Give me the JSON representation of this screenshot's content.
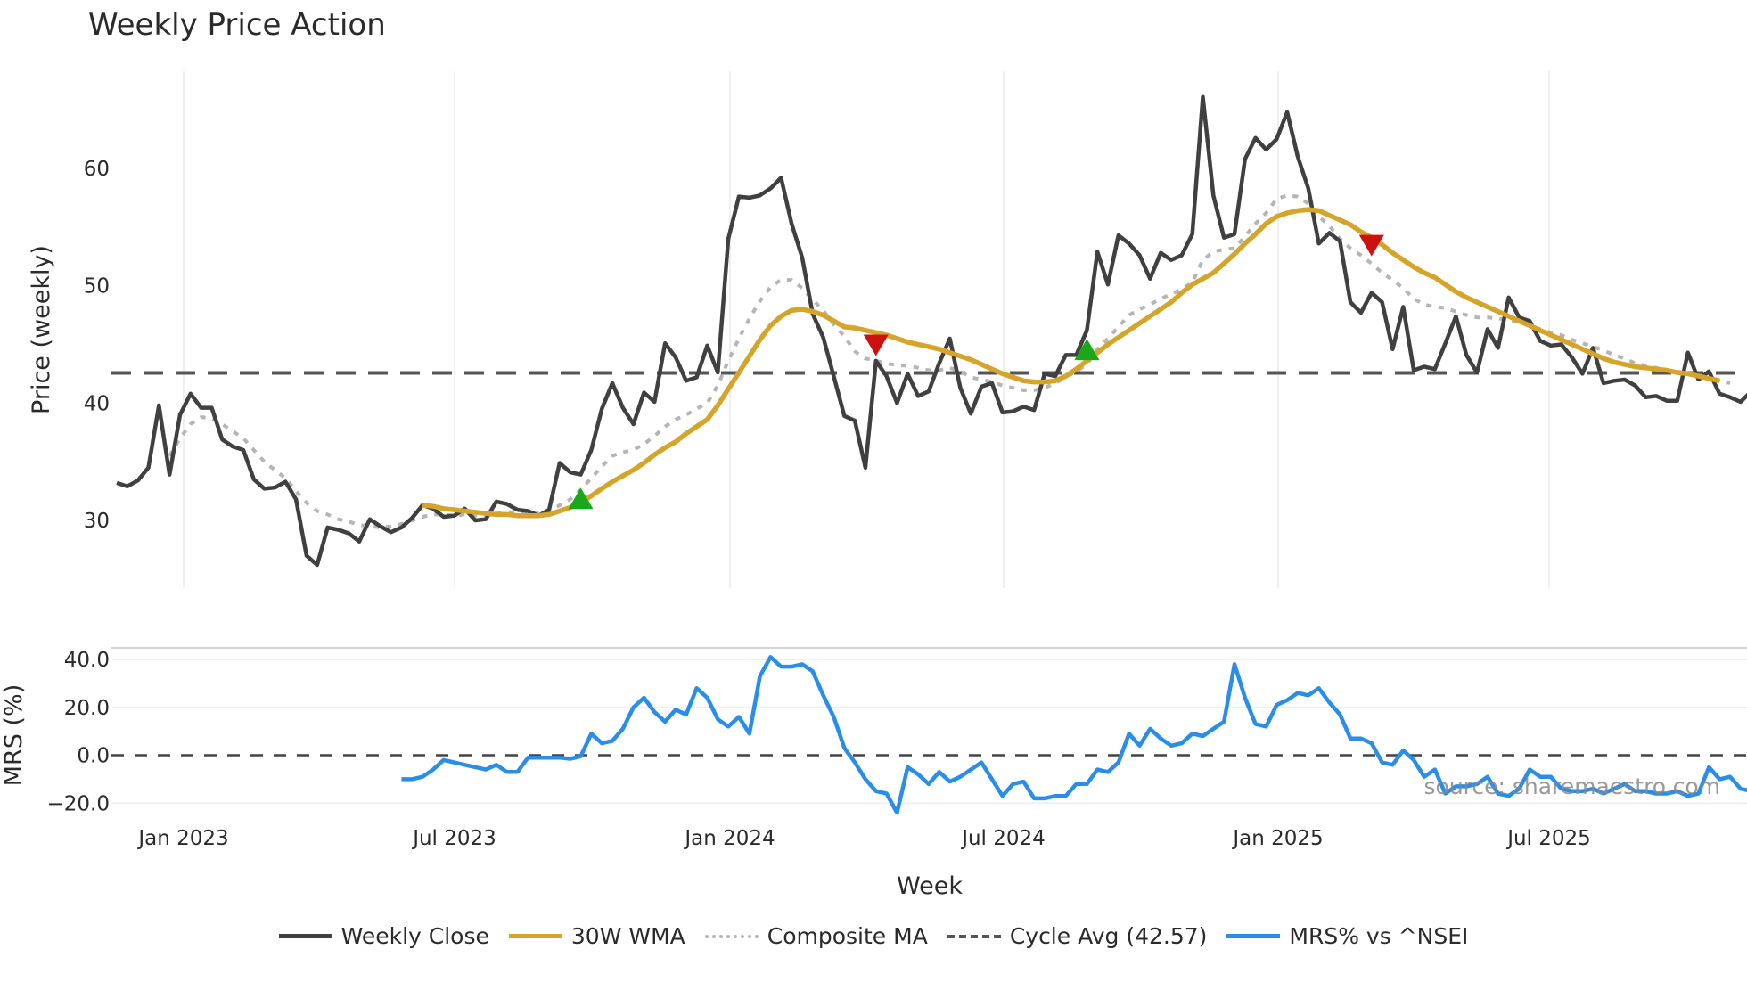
{
  "title": "Weekly Price Action",
  "watermark": "source: sharemaestro.com",
  "axes": {
    "price_ylabel": "Price (weekly)",
    "mrs_ylabel": "MRS (%)",
    "xlabel": "Week",
    "price_ticks": [
      "30",
      "40",
      "50",
      "60"
    ],
    "mrs_ticks": [
      "40.0",
      "20.0",
      "0.0",
      "−20.0"
    ],
    "x_ticks": [
      "Jan 2023",
      "Jul 2023",
      "Jan 2024",
      "Jul 2024",
      "Jan 2025",
      "Jul 2025"
    ]
  },
  "legend": [
    {
      "label": "Weekly Close",
      "color": "#404040",
      "style": "solid"
    },
    {
      "label": "30W WMA",
      "color": "#d4a52a",
      "style": "solid"
    },
    {
      "label": "Composite MA",
      "color": "#b5b5b5",
      "style": "dotted"
    },
    {
      "label": "Cycle Avg (42.57)",
      "color": "#555555",
      "style": "dashed"
    },
    {
      "label": "MRS% vs ^NSEI",
      "color": "#2a8ee8",
      "style": "solid"
    }
  ],
  "chart_data": {
    "type": "line",
    "title": "Weekly Price Action",
    "xlabel": "Week",
    "ylabel": "Price (weekly)",
    "ylim": [
      24,
      67
    ],
    "x_ticks": [
      "Jan 2023",
      "Jul 2023",
      "Jan 2024",
      "Jul 2024",
      "Jan 2025",
      "Jul 2025"
    ],
    "grid": true,
    "legend_position": "bottom",
    "cycle_avg": 42.57,
    "series": [
      {
        "name": "Weekly Close",
        "values": [
          33.2,
          32.9,
          33.4,
          34.5,
          39.8,
          33.9,
          39.0,
          40.8,
          39.6,
          39.6,
          36.9,
          36.3,
          36.0,
          33.5,
          32.7,
          32.8,
          33.3,
          31.8,
          27.0,
          26.2,
          29.4,
          29.2,
          28.9,
          28.2,
          30.1,
          29.5,
          29.0,
          29.4,
          30.2,
          31.3,
          31.0,
          30.3,
          30.4,
          31.0,
          30.0,
          30.1,
          31.6,
          31.4,
          30.9,
          30.8,
          30.4,
          30.9,
          34.9,
          34.1,
          33.9,
          36.0,
          39.5,
          41.7,
          39.6,
          38.2,
          40.9,
          40.1,
          45.1,
          43.9,
          41.9,
          42.2,
          44.9,
          42.6,
          54.0,
          57.6,
          57.5,
          57.7,
          58.3,
          59.2,
          55.3,
          52.4,
          47.6,
          45.6,
          42.3,
          38.9,
          38.5,
          34.5,
          43.6,
          42.3,
          40.0,
          42.5,
          40.6,
          41.0,
          43.4,
          45.5,
          41.3,
          39.1,
          41.4,
          41.7,
          39.2,
          39.3,
          39.7,
          39.4,
          42.5,
          42.3,
          44.1,
          44.1,
          46.2,
          52.9,
          50.1,
          54.3,
          53.6,
          52.6,
          50.6,
          52.8,
          52.2,
          52.6,
          54.4,
          66.1,
          57.7,
          54.1,
          54.4,
          60.8,
          62.6,
          61.6,
          62.5,
          64.8,
          61.0,
          58.3,
          53.6,
          54.5,
          53.8,
          48.6,
          47.7,
          49.4,
          48.6,
          44.6,
          48.2,
          42.8,
          43.1,
          42.9,
          45.1,
          47.4,
          44.1,
          42.6,
          46.3,
          44.7,
          49.0,
          47.3,
          47.0,
          45.3,
          44.9,
          45.0,
          43.9,
          42.5,
          44.7,
          41.7,
          41.9,
          42.0,
          41.5,
          40.5,
          40.6,
          40.2,
          40.2,
          44.3,
          42.0,
          42.7,
          40.8,
          40.5,
          40.1,
          41.0,
          40.4
        ]
      },
      {
        "name": "30W WMA",
        "values": [
          null,
          null,
          null,
          null,
          null,
          null,
          null,
          null,
          null,
          null,
          null,
          null,
          null,
          null,
          null,
          null,
          null,
          null,
          null,
          null,
          null,
          null,
          null,
          null,
          null,
          null,
          null,
          null,
          null,
          31.3,
          31.2,
          31.0,
          30.9,
          30.8,
          30.7,
          30.6,
          30.5,
          30.5,
          30.4,
          30.4,
          30.4,
          30.5,
          30.8,
          31.1,
          31.5,
          32.1,
          32.7,
          33.3,
          33.8,
          34.3,
          34.9,
          35.6,
          36.2,
          36.7,
          37.4,
          38.0,
          38.6,
          39.8,
          41.2,
          42.6,
          44.0,
          45.4,
          46.6,
          47.4,
          47.9,
          48.0,
          47.8,
          47.5,
          47.0,
          46.5,
          46.4,
          46.2,
          46.0,
          45.8,
          45.5,
          45.2,
          45.0,
          44.8,
          44.6,
          44.3,
          44.0,
          43.7,
          43.3,
          42.9,
          42.5,
          42.2,
          41.9,
          41.8,
          41.8,
          41.9,
          42.3,
          42.9,
          43.6,
          44.3,
          45.0,
          45.6,
          46.2,
          46.8,
          47.4,
          48.0,
          48.6,
          49.4,
          50.1,
          50.6,
          51.1,
          51.9,
          52.7,
          53.6,
          54.4,
          55.3,
          55.9,
          56.2,
          56.4,
          56.5,
          56.4,
          56.0,
          55.6,
          55.2,
          54.6,
          54.1,
          53.5,
          52.8,
          52.2,
          51.6,
          51.1,
          50.7,
          50.1,
          49.5,
          49.0,
          48.6,
          48.2,
          47.8,
          47.4,
          47.0,
          46.6,
          46.2,
          45.8,
          45.4,
          45.0,
          44.6,
          44.2,
          43.8,
          43.5,
          43.3,
          43.1,
          43.0,
          42.9,
          42.8,
          42.6,
          42.5,
          42.3,
          42.1,
          41.9
        ]
      },
      {
        "name": "Composite MA",
        "values": [
          null,
          null,
          null,
          null,
          null,
          35.5,
          37.0,
          38.2,
          38.8,
          38.7,
          38.2,
          37.6,
          37.0,
          36.0,
          35.0,
          34.3,
          33.6,
          32.5,
          31.5,
          30.8,
          30.5,
          30.1,
          29.9,
          29.6,
          29.5,
          29.4,
          29.5,
          29.7,
          30.0,
          30.3,
          30.5,
          30.5,
          30.4,
          30.5,
          30.4,
          30.5,
          30.6,
          30.7,
          30.7,
          30.6,
          30.6,
          30.7,
          31.3,
          31.8,
          32.6,
          33.6,
          34.6,
          35.5,
          35.8,
          36.0,
          36.5,
          37.2,
          38.0,
          38.6,
          39.0,
          39.5,
          40.0,
          41.5,
          43.6,
          45.5,
          47.2,
          48.7,
          49.9,
          50.5,
          50.5,
          49.8,
          48.8,
          47.9,
          46.7,
          45.7,
          44.4,
          43.8,
          43.6,
          43.4,
          43.2,
          43.2,
          43.0,
          42.8,
          42.8,
          43.0,
          42.7,
          42.2,
          42.0,
          41.8,
          41.5,
          41.3,
          41.1,
          41.1,
          41.3,
          41.7,
          42.2,
          42.7,
          43.3,
          44.6,
          45.5,
          46.5,
          47.5,
          48.0,
          48.4,
          48.9,
          49.3,
          49.7,
          50.3,
          52.2,
          52.9,
          53.1,
          53.2,
          54.2,
          55.3,
          56.2,
          57.4,
          57.7,
          57.6,
          57.0,
          55.9,
          55.1,
          54.0,
          53.2,
          52.6,
          51.9,
          51.1,
          50.5,
          49.8,
          48.9,
          48.4,
          48.2,
          48.1,
          47.8,
          47.5,
          47.3,
          47.3,
          47.2,
          47.1,
          46.9,
          46.6,
          46.3,
          46.0,
          45.8,
          45.4,
          45.1,
          44.8,
          44.5,
          44.1,
          43.8,
          43.4,
          43.2,
          43.0,
          42.8,
          42.7,
          42.5,
          42.3,
          42.1,
          41.9,
          41.7
        ]
      },
      {
        "name": "MRS% vs ^NSEI",
        "values": [
          null,
          null,
          null,
          null,
          null,
          null,
          null,
          null,
          null,
          null,
          null,
          null,
          null,
          null,
          null,
          null,
          null,
          null,
          null,
          null,
          null,
          null,
          null,
          null,
          null,
          null,
          null,
          -10,
          -10,
          -9,
          -6,
          -2,
          -3,
          -4,
          -5,
          -6,
          -4,
          -7,
          -7,
          -1,
          -1,
          -1,
          -1,
          -1.5,
          -0.5,
          9,
          5,
          6,
          11,
          20,
          24,
          18,
          14,
          19,
          17,
          28,
          24,
          15,
          12,
          16,
          9,
          33,
          41,
          37,
          37,
          38,
          35,
          25,
          16,
          3,
          -3,
          -10,
          -15,
          -16,
          -24,
          -5,
          -8,
          -12,
          -7,
          -11,
          -9,
          -6,
          -3,
          -10,
          -17,
          -12,
          -11,
          -18,
          -18,
          -17,
          -17,
          -12,
          -12,
          -6,
          -7,
          -3,
          9,
          4,
          11,
          7,
          4,
          5,
          9,
          8,
          11,
          14,
          38,
          24,
          13,
          12,
          21,
          23,
          26,
          25,
          28,
          22,
          17,
          7,
          7,
          5,
          -3,
          -4,
          2,
          -2,
          -9,
          -6,
          -16,
          -13,
          -13,
          -12,
          -9,
          -16,
          -17,
          -14,
          -6,
          -9,
          -9,
          -14,
          -15,
          -15,
          -14,
          -16,
          -14,
          -12,
          -15,
          -15,
          -16,
          -16,
          -15,
          -17,
          -16,
          -5,
          -10,
          -9,
          -14,
          -15,
          -14,
          -10,
          -12
        ]
      }
    ],
    "markers": [
      {
        "type": "buy",
        "symbol": "triangle-up",
        "color": "#1aa81a",
        "week": 44,
        "value": 31.8
      },
      {
        "type": "sell",
        "symbol": "triangle-down",
        "color": "#cc1111",
        "week": 72,
        "value": 45.0
      },
      {
        "type": "buy",
        "symbol": "triangle-up",
        "color": "#1aa81a",
        "week": 92,
        "value": 44.5
      },
      {
        "type": "sell",
        "symbol": "triangle-down",
        "color": "#cc1111",
        "week": 119,
        "value": 53.5
      }
    ],
    "mrs_ylim": [
      -25,
      45
    ],
    "mrs_zero_line": 0
  }
}
